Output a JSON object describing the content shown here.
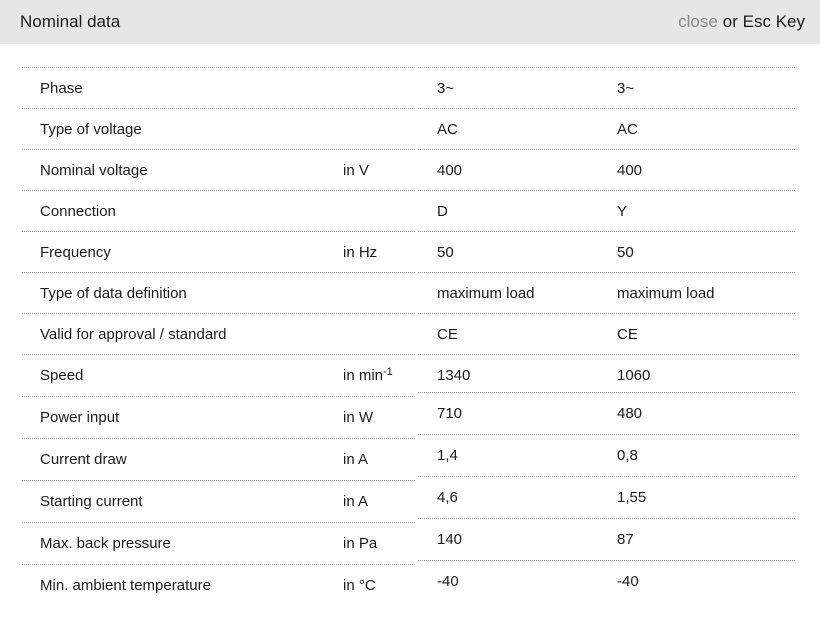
{
  "header": {
    "title": "Nominal data",
    "close_label": "close",
    "close_suffix": "or Esc Key"
  },
  "table": {
    "rows": [
      {
        "label": "Phase",
        "unit": "",
        "v1": "3~",
        "v2": "3~"
      },
      {
        "label": "Type of voltage",
        "unit": "",
        "v1": "AC",
        "v2": "AC"
      },
      {
        "label": "Nominal voltage",
        "unit": "in V",
        "v1": "400",
        "v2": "400"
      },
      {
        "label": "Connection",
        "unit": "",
        "v1": "D",
        "v2": "Y"
      },
      {
        "label": "Frequency",
        "unit": "in Hz",
        "v1": "50",
        "v2": "50"
      },
      {
        "label": "Type of data definition",
        "unit": "",
        "v1": "maximum load",
        "v2": "maximum load"
      },
      {
        "label": "Valid for approval / standard",
        "unit": "",
        "v1": "CE",
        "v2": "CE"
      },
      {
        "label": "Speed",
        "unit": "in min",
        "unit_sup": "-1",
        "v1": "1340",
        "v2": "1060"
      },
      {
        "label": "Power input",
        "unit": "in W",
        "v1": "710",
        "v2": "480"
      },
      {
        "label": "Current draw",
        "unit": "in A",
        "v1": "1,4",
        "v2": "0,8"
      },
      {
        "label": "Starting current",
        "unit": "in A",
        "v1": "4,6",
        "v2": "1,55"
      },
      {
        "label": "Max. back pressure",
        "unit": "in Pa",
        "v1": "140",
        "v2": "87"
      },
      {
        "label": "Min. ambient temperature",
        "unit": "in °C",
        "v1": "-40",
        "v2": "-40"
      }
    ]
  },
  "colors": {
    "header_bg": "#e6e6e6",
    "text": "#1c1c1c",
    "close_link": "#8a8a8a",
    "divider_dotted": "#a3a3a3",
    "background": "#ffffff"
  }
}
